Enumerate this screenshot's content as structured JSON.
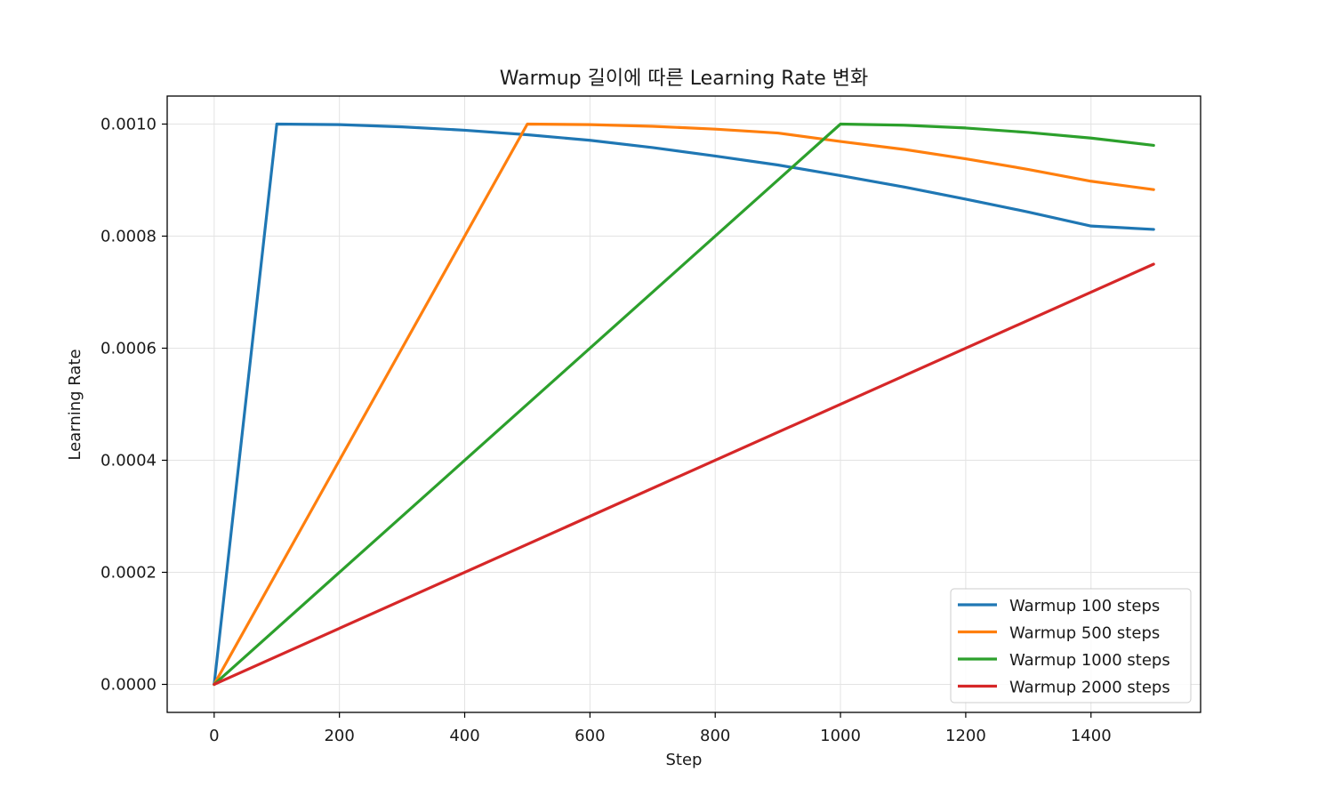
{
  "chart_data": {
    "type": "line",
    "title": "Warmup 길이에 따른 Learning Rate 변화",
    "xlabel": "Step",
    "ylabel": "Learning Rate",
    "xlim": [
      -75,
      1575
    ],
    "ylim": [
      -5e-05,
      0.00105
    ],
    "xticks": [
      "0",
      "200",
      "400",
      "600",
      "800",
      "1000",
      "1200",
      "1400"
    ],
    "xtick_values": [
      0,
      200,
      400,
      600,
      800,
      1000,
      1200,
      1400
    ],
    "yticks": [
      "0.0000",
      "0.0002",
      "0.0004",
      "0.0006",
      "0.0008",
      "0.0010"
    ],
    "ytick_values": [
      0,
      0.0002,
      0.0004,
      0.0006,
      0.0008,
      0.001
    ],
    "grid": true,
    "legend_position": "lower-right",
    "series": [
      {
        "name": "Warmup 100 steps",
        "color": "#1f77b4",
        "x": [
          0,
          100,
          200,
          300,
          400,
          500,
          600,
          700,
          800,
          900,
          1000,
          1100,
          1200,
          1300,
          1400,
          1500
        ],
        "y": [
          0,
          0.001,
          0.000999,
          0.000995,
          0.000989,
          0.000981,
          0.000971,
          0.000958,
          0.000943,
          0.000927,
          0.000908,
          0.000888,
          0.000866,
          0.000843,
          0.000818,
          0.000812
        ]
      },
      {
        "name": "Warmup 500 steps",
        "color": "#ff7f0e",
        "x": [
          0,
          500,
          600,
          700,
          800,
          900,
          1000,
          1100,
          1200,
          1300,
          1400,
          1500
        ],
        "y": [
          0,
          0.001,
          0.000999,
          0.000996,
          0.000991,
          0.000984,
          0.000969,
          0.000955,
          0.000938,
          0.000919,
          0.000898,
          0.000883
        ]
      },
      {
        "name": "Warmup 1000 steps",
        "color": "#2ca02c",
        "x": [
          0,
          1000,
          1100,
          1200,
          1300,
          1400,
          1500
        ],
        "y": [
          0,
          0.001,
          0.000998,
          0.000993,
          0.000985,
          0.000975,
          0.000962
        ]
      },
      {
        "name": "Warmup 2000 steps",
        "color": "#d62728",
        "x": [
          0,
          1500
        ],
        "y": [
          0,
          0.00075
        ]
      }
    ]
  }
}
